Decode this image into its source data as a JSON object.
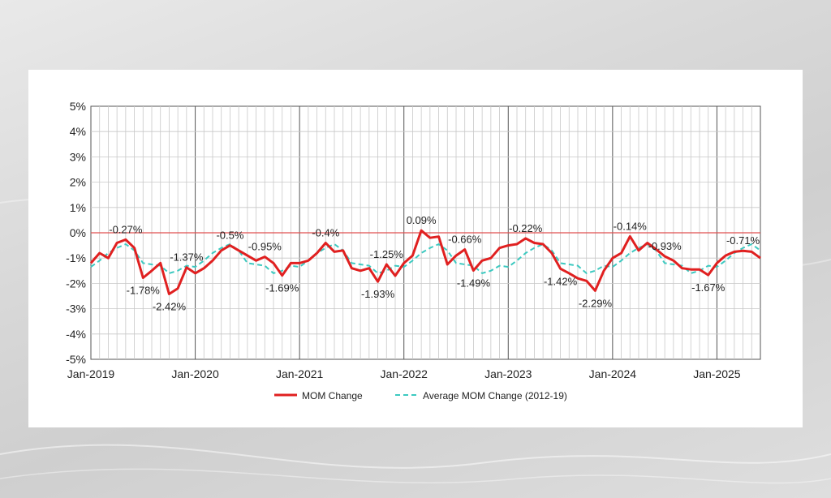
{
  "chart_data": {
    "type": "line",
    "title": "",
    "xlabel": "",
    "ylabel": "",
    "ylim": [
      -5,
      5
    ],
    "y_ticks": [
      "5%",
      "4%",
      "3%",
      "2%",
      "1%",
      "0%",
      "-1%",
      "-2%",
      "-3%",
      "-4%",
      "-5%"
    ],
    "x_ticks": [
      "Jan-2019",
      "Jan-2020",
      "Jan-2021",
      "Jan-2022",
      "Jan-2023",
      "Jan-2024",
      "Jan-2025"
    ],
    "x_tick_index": [
      0,
      12,
      24,
      36,
      48,
      60,
      72
    ],
    "grid": "on",
    "legend_position": "bottom",
    "reference_line": 0,
    "colors": {
      "mom": "#e02020",
      "avg": "#3cc9c0",
      "zero_line": "#e05050"
    },
    "series": [
      {
        "name": "MOM Change",
        "values": [
          -1.2,
          -0.8,
          -1.0,
          -0.4,
          -0.27,
          -0.6,
          -1.78,
          -1.5,
          -1.2,
          -2.42,
          -2.2,
          -1.37,
          -1.6,
          -1.4,
          -1.1,
          -0.7,
          -0.5,
          -0.7,
          -0.9,
          -1.1,
          -0.95,
          -1.2,
          -1.69,
          -1.2,
          -1.2,
          -1.1,
          -0.8,
          -0.4,
          -0.75,
          -0.7,
          -1.4,
          -1.5,
          -1.4,
          -1.93,
          -1.25,
          -1.7,
          -1.2,
          -0.9,
          0.09,
          -0.2,
          -0.15,
          -1.25,
          -0.9,
          -0.66,
          -1.49,
          -1.1,
          -1.0,
          -0.6,
          -0.5,
          -0.45,
          -0.22,
          -0.4,
          -0.45,
          -0.8,
          -1.42,
          -1.6,
          -1.8,
          -1.9,
          -2.29,
          -1.5,
          -1.0,
          -0.8,
          -0.14,
          -0.7,
          -0.4,
          -0.65,
          -0.93,
          -1.1,
          -1.4,
          -1.45,
          -1.45,
          -1.67,
          -1.2,
          -0.9,
          -0.75,
          -0.71,
          -0.75,
          -1.0
        ]
      },
      {
        "name": "Average MOM Change (2012-19)",
        "values": [
          -1.35,
          -1.1,
          -0.8,
          -0.6,
          -0.45,
          -0.7,
          -1.2,
          -1.25,
          -1.3,
          -1.6,
          -1.5,
          -1.3,
          -1.35,
          -1.1,
          -0.8,
          -0.6,
          -0.45,
          -0.7,
          -1.2,
          -1.25,
          -1.3,
          -1.6,
          -1.5,
          -1.3,
          -1.35,
          -1.1,
          -0.8,
          -0.6,
          -0.45,
          -0.7,
          -1.2,
          -1.25,
          -1.3,
          -1.6,
          -1.5,
          -1.3,
          -1.35,
          -1.1,
          -0.8,
          -0.6,
          -0.45,
          -0.7,
          -1.2,
          -1.25,
          -1.3,
          -1.6,
          -1.5,
          -1.3,
          -1.35,
          -1.1,
          -0.8,
          -0.6,
          -0.45,
          -0.7,
          -1.2,
          -1.25,
          -1.3,
          -1.6,
          -1.5,
          -1.3,
          -1.35,
          -1.1,
          -0.8,
          -0.6,
          -0.45,
          -0.7,
          -1.2,
          -1.25,
          -1.3,
          -1.6,
          -1.5,
          -1.3,
          -1.35,
          -1.1,
          -0.8,
          -0.6,
          -0.45,
          -0.7
        ]
      }
    ],
    "annotations": [
      {
        "index": 4,
        "text": "-0.27%",
        "pos": "above"
      },
      {
        "index": 6,
        "text": "-1.78%",
        "pos": "below"
      },
      {
        "index": 9,
        "text": "-2.42%",
        "pos": "below"
      },
      {
        "index": 11,
        "text": "-1.37%",
        "pos": "above"
      },
      {
        "index": 16,
        "text": "-0.5%",
        "pos": "above"
      },
      {
        "index": 20,
        "text": "-0.95%",
        "pos": "above"
      },
      {
        "index": 22,
        "text": "-1.69%",
        "pos": "below"
      },
      {
        "index": 27,
        "text": "-0.4%",
        "pos": "above"
      },
      {
        "index": 33,
        "text": "-1.93%",
        "pos": "below"
      },
      {
        "index": 34,
        "text": "-1.25%",
        "pos": "above"
      },
      {
        "index": 38,
        "text": "0.09%",
        "pos": "above"
      },
      {
        "index": 43,
        "text": "-0.66%",
        "pos": "above"
      },
      {
        "index": 44,
        "text": "-1.49%",
        "pos": "below"
      },
      {
        "index": 50,
        "text": "-0.22%",
        "pos": "above"
      },
      {
        "index": 54,
        "text": "-1.42%",
        "pos": "below"
      },
      {
        "index": 58,
        "text": "-2.29%",
        "pos": "below"
      },
      {
        "index": 62,
        "text": "-0.14%",
        "pos": "above"
      },
      {
        "index": 66,
        "text": "-0.93%",
        "pos": "above"
      },
      {
        "index": 71,
        "text": "-1.67%",
        "pos": "below"
      },
      {
        "index": 75,
        "text": "-0.71%",
        "pos": "above"
      }
    ]
  }
}
